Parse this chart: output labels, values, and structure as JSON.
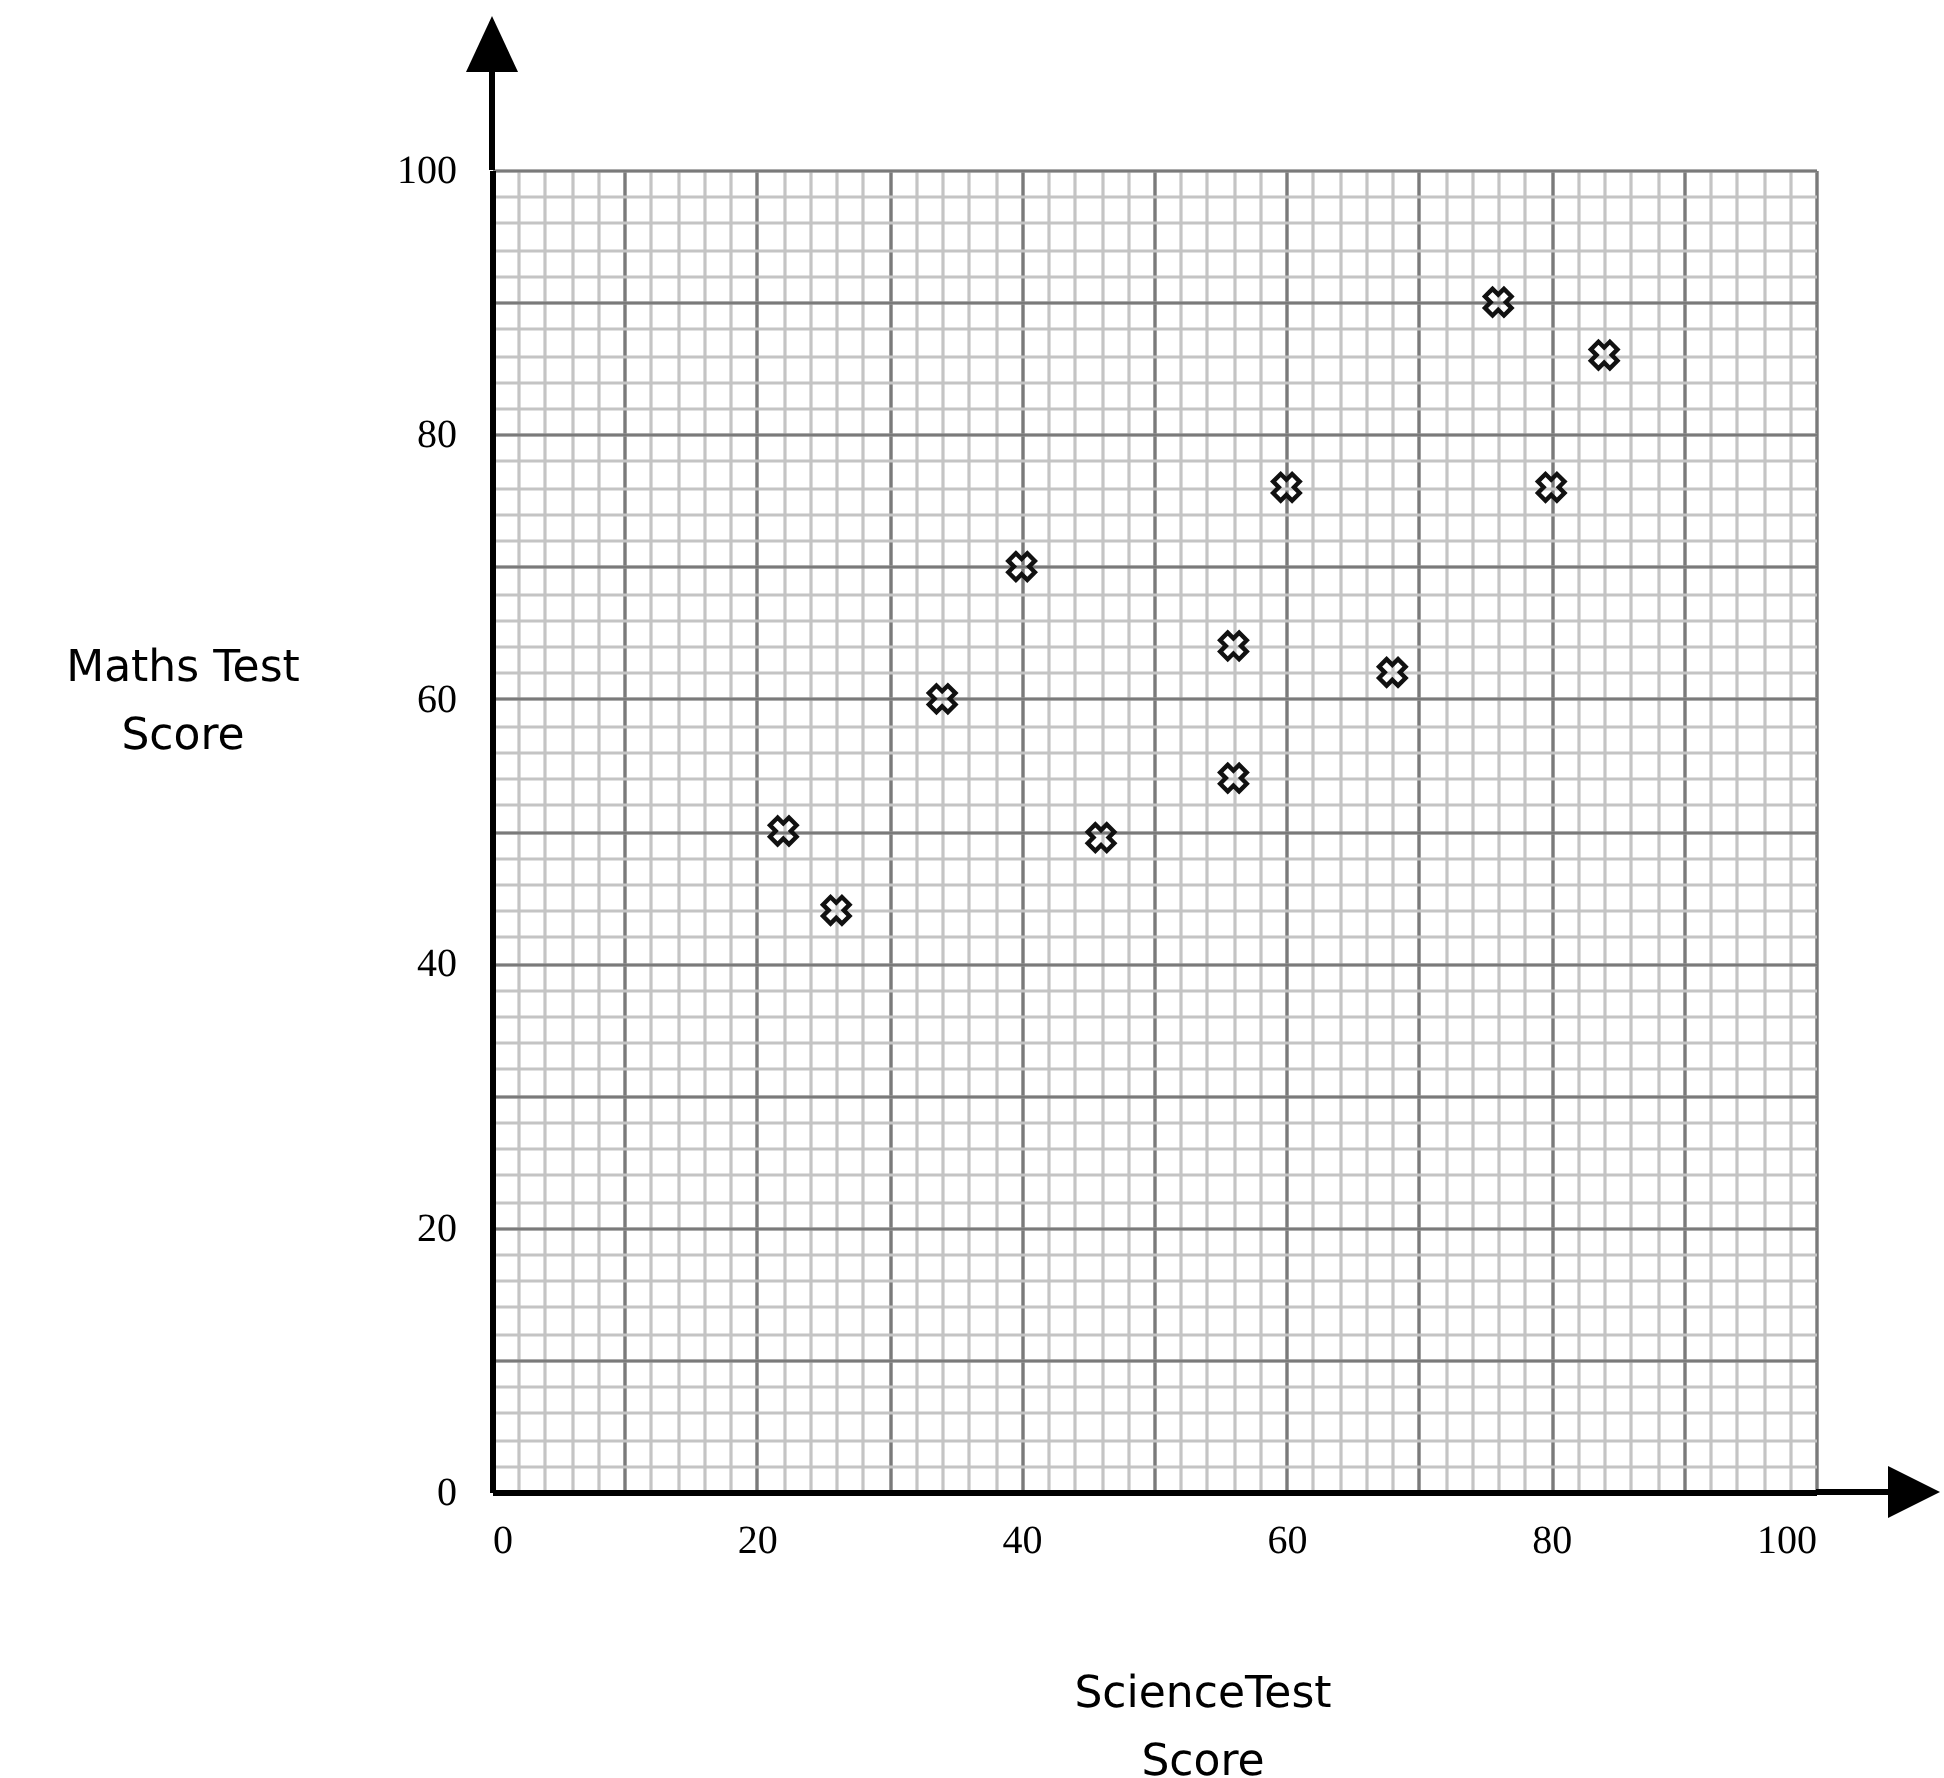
{
  "chart_data": {
    "type": "scatter",
    "xlabel": "ScienceTest Score",
    "ylabel": "Maths Test Score",
    "x": [
      22,
      26,
      34,
      40,
      46,
      56,
      56,
      60,
      68,
      76,
      80,
      84
    ],
    "values": [
      50,
      44,
      60,
      70,
      49.5,
      64,
      54,
      76,
      62,
      90,
      76,
      86
    ],
    "color": "#111111",
    "marker": "cross",
    "grid": true,
    "xlim": [
      0,
      100
    ],
    "ylim": [
      0,
      100
    ],
    "xticks": [
      0,
      20,
      40,
      60,
      80,
      100
    ],
    "yticks": [
      0,
      20,
      40,
      60,
      80,
      100
    ]
  }
}
